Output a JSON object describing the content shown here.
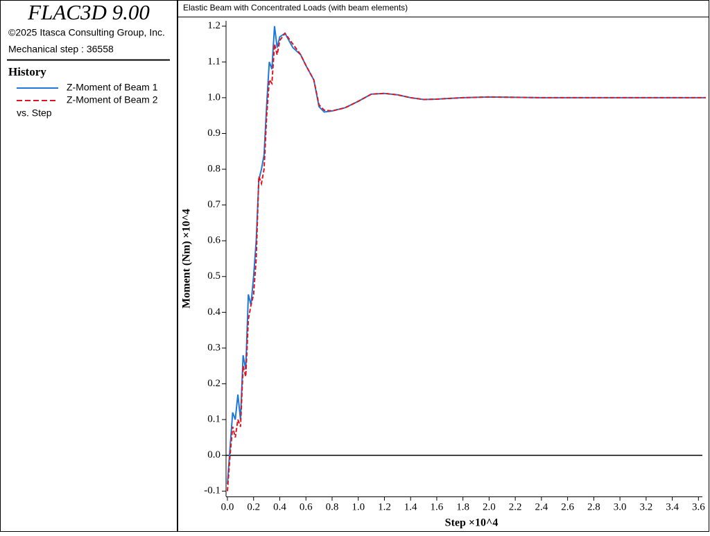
{
  "panel": {
    "product": "FLAC3D 9.00",
    "copyright": "©2025 Itasca Consulting Group, Inc.",
    "step_label": "Mechanical step : 36558",
    "history": "History",
    "versus": "vs. Step"
  },
  "chart_data": {
    "type": "line",
    "title": "Elastic Beam with Concentrated Loads (with beam elements)",
    "x_label": "Step ×10^4",
    "y_label": "Moment (Nm) ×10^4",
    "xlim": [
      0,
      3.63
    ],
    "ylim": [
      -0.115,
      1.215
    ],
    "xticks": [
      {
        "value": 0,
        "label": "0.0"
      },
      0.2,
      0.4,
      0.6,
      0.8,
      {
        "value": 1,
        "label": "1.0"
      },
      1.2,
      1.4,
      1.6,
      1.8,
      {
        "value": 2,
        "label": "2.0"
      },
      2.2,
      2.4,
      2.6,
      2.8,
      {
        "value": 3,
        "label": "3.0"
      },
      3.2,
      3.4,
      3.6
    ],
    "yticks": [
      -0.1,
      {
        "value": 0,
        "label": "0.0"
      },
      0.1,
      0.2,
      0.3,
      0.4,
      0.5,
      0.6,
      0.7,
      0.8,
      0.9,
      {
        "value": 1,
        "label": "1.0"
      },
      1.1,
      1.2
    ],
    "x": [
      0,
      0.02,
      0.04,
      0.06,
      0.08,
      0.1,
      0.12,
      0.14,
      0.16,
      0.18,
      0.2,
      0.22,
      0.24,
      0.26,
      0.28,
      0.3,
      0.32,
      0.34,
      0.36,
      0.38,
      0.4,
      0.44,
      0.5,
      0.56,
      0.6,
      0.66,
      0.7,
      0.74,
      0.8,
      0.9,
      1.0,
      1.1,
      1.2,
      1.3,
      1.4,
      1.5,
      1.6,
      1.8,
      2.0,
      2.4,
      3.0,
      3.6558
    ],
    "series": [
      {
        "name": "Z-Moment of Beam 1",
        "color": "#1e78dc",
        "dashed": false,
        "values": [
          -0.08,
          0.02,
          0.12,
          0.1,
          0.17,
          0.1,
          0.28,
          0.24,
          0.45,
          0.42,
          0.5,
          0.6,
          0.77,
          0.8,
          0.84,
          0.98,
          1.1,
          1.08,
          1.2,
          1.14,
          1.17,
          1.18,
          1.14,
          1.12,
          1.09,
          1.05,
          0.975,
          0.96,
          0.963,
          0.972,
          0.99,
          1.01,
          1.012,
          1.008,
          1.0,
          0.995,
          0.996,
          1.0,
          1.002,
          1.0,
          1.0,
          1.0
        ]
      },
      {
        "name": "Z-Moment of Beam 2",
        "color": "#e0141e",
        "dashed": true,
        "values": [
          -0.1,
          0.0,
          0.08,
          0.05,
          0.1,
          0.08,
          0.25,
          0.22,
          0.38,
          0.42,
          0.45,
          0.55,
          0.78,
          0.76,
          0.8,
          0.95,
          1.05,
          1.04,
          1.15,
          1.12,
          1.16,
          1.18,
          1.15,
          1.12,
          1.09,
          1.05,
          0.98,
          0.965,
          0.963,
          0.972,
          0.99,
          1.01,
          1.012,
          1.008,
          1.0,
          0.995,
          0.996,
          1.0,
          1.002,
          1.0,
          1.0,
          1.0
        ]
      }
    ]
  }
}
